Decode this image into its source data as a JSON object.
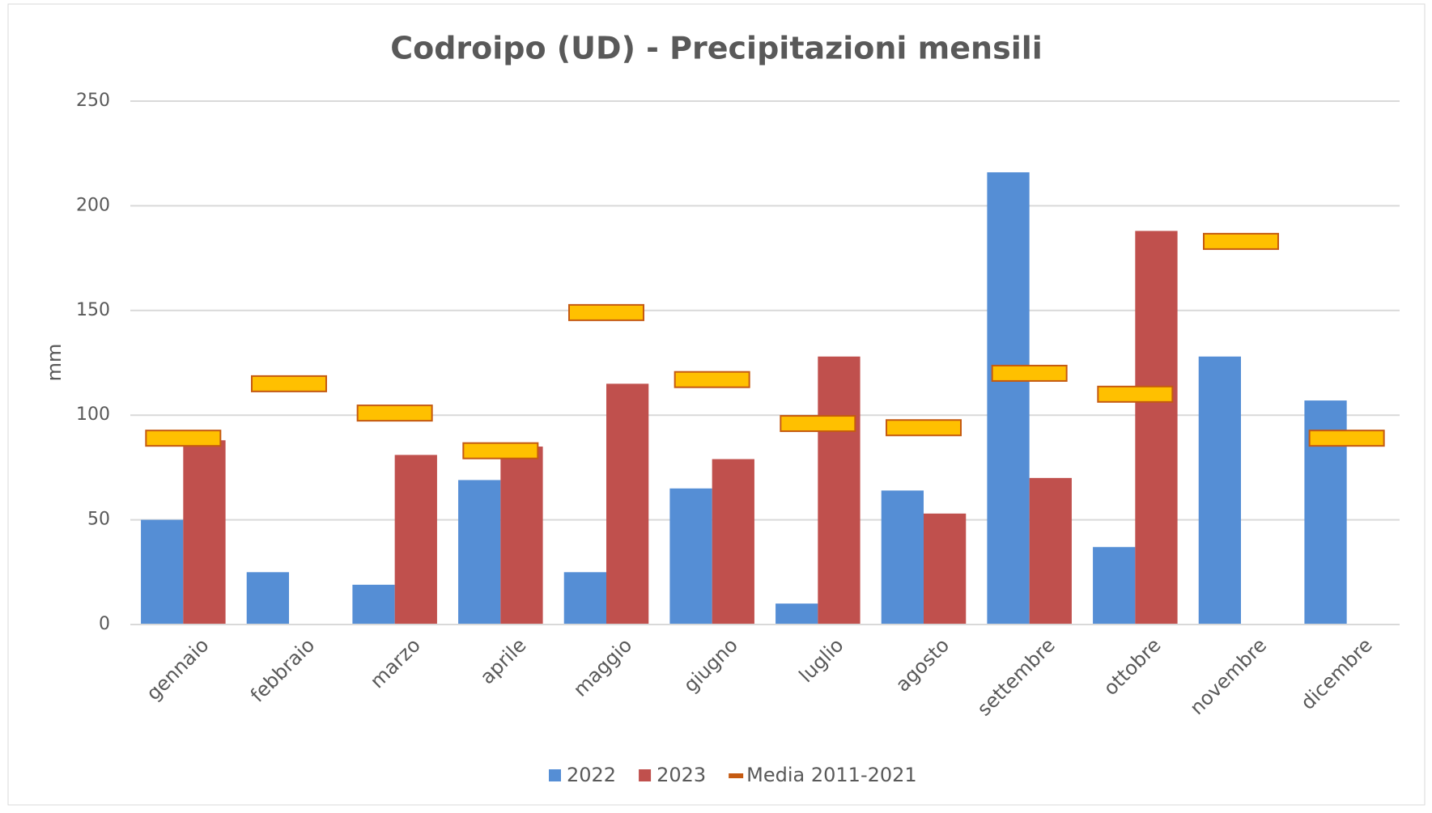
{
  "chart_data": {
    "type": "bar",
    "title": "Codroipo (UD) - Precipitazioni mensili",
    "y_label": "mm",
    "categories": [
      "gennaio",
      "febbraio",
      "marzo",
      "aprile",
      "maggio",
      "giugno",
      "luglio",
      "agosto",
      "settembre",
      "ottobre",
      "novembre",
      "dicembre"
    ],
    "series": [
      {
        "name": "2022",
        "color": "#558ed5",
        "values": [
          50,
          25,
          19,
          69,
          25,
          65,
          10,
          64,
          216,
          37,
          128,
          107
        ]
      },
      {
        "name": "2023",
        "color": "#c0504d",
        "values": [
          88,
          null,
          81,
          85,
          115,
          79,
          128,
          53,
          70,
          188,
          null,
          null
        ]
      },
      {
        "name": "Media 2011-2021",
        "type": "marker",
        "color": "#ffc000",
        "edge_color": "#c55a11",
        "values": [
          89,
          115,
          101,
          83,
          149,
          117,
          96,
          94,
          120,
          110,
          183,
          89
        ]
      }
    ],
    "ylim": [
      0,
      250
    ],
    "yticks": [
      0,
      50,
      100,
      150,
      200,
      250
    ],
    "grid": true,
    "legend": "bottom"
  }
}
